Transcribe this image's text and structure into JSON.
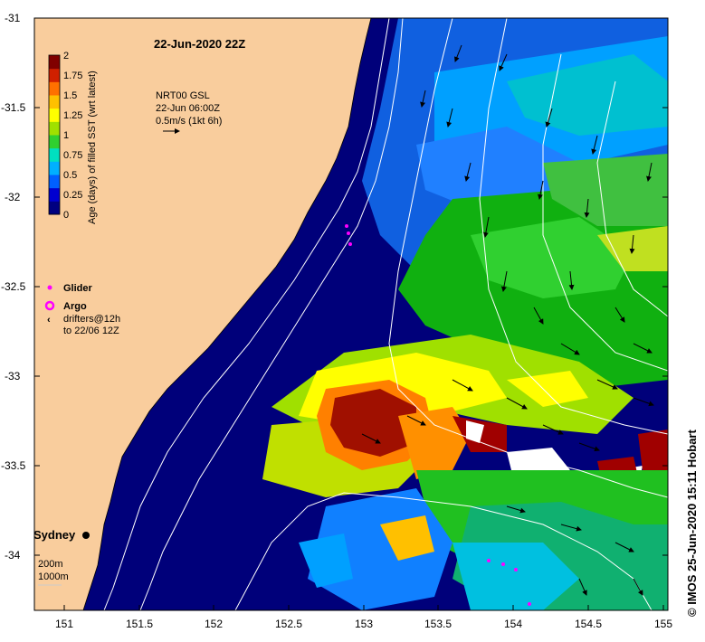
{
  "title": "22-Jun-2020 22Z",
  "current_info": {
    "line1": "NRT00 GSL",
    "line2": "22-Jun 06:00Z",
    "line3": "0.5m/s (1kt 6h)"
  },
  "colorbar": {
    "label": "Age (days) of filled SST (wrt latest)",
    "ticks": [
      "2",
      "1.75",
      "1.5",
      "1.25",
      "1",
      "0.75",
      "0.5",
      "0.25",
      "0"
    ],
    "colors": [
      "#000080",
      "#0000d0",
      "#0060ff",
      "#00b0ff",
      "#00e0c0",
      "#30d030",
      "#a0e000",
      "#ffff00",
      "#ffc000",
      "#ff7000",
      "#d02000",
      "#800000"
    ]
  },
  "legend": {
    "glider": "Glider",
    "argo": "Argo",
    "drifters_line1": "drifters@12h",
    "drifters_line2": "to 22/06 12Z",
    "glider_color": "#ff00ff",
    "argo_color": "#ff00ff"
  },
  "axes": {
    "x_ticks": [
      "151",
      "151.5",
      "152",
      "152.5",
      "153",
      "153.5",
      "154",
      "154.5",
      "155"
    ],
    "y_ticks": [
      "-31",
      "-31.5",
      "-32",
      "-32.5",
      "-33",
      "-33.5",
      "-34"
    ],
    "x_range": [
      150.85,
      155.0
    ],
    "y_range": [
      -34.3,
      -31.0
    ]
  },
  "place_label": "Sydney",
  "depth_labels": [
    "200m",
    "1000m"
  ],
  "credit": "© IMOS 25-Jun-2020 15:11 Hobart",
  "colors": {
    "land": "#f9cd9d",
    "deep_blue": "#00007a",
    "bathymetry": "#ffffff"
  }
}
